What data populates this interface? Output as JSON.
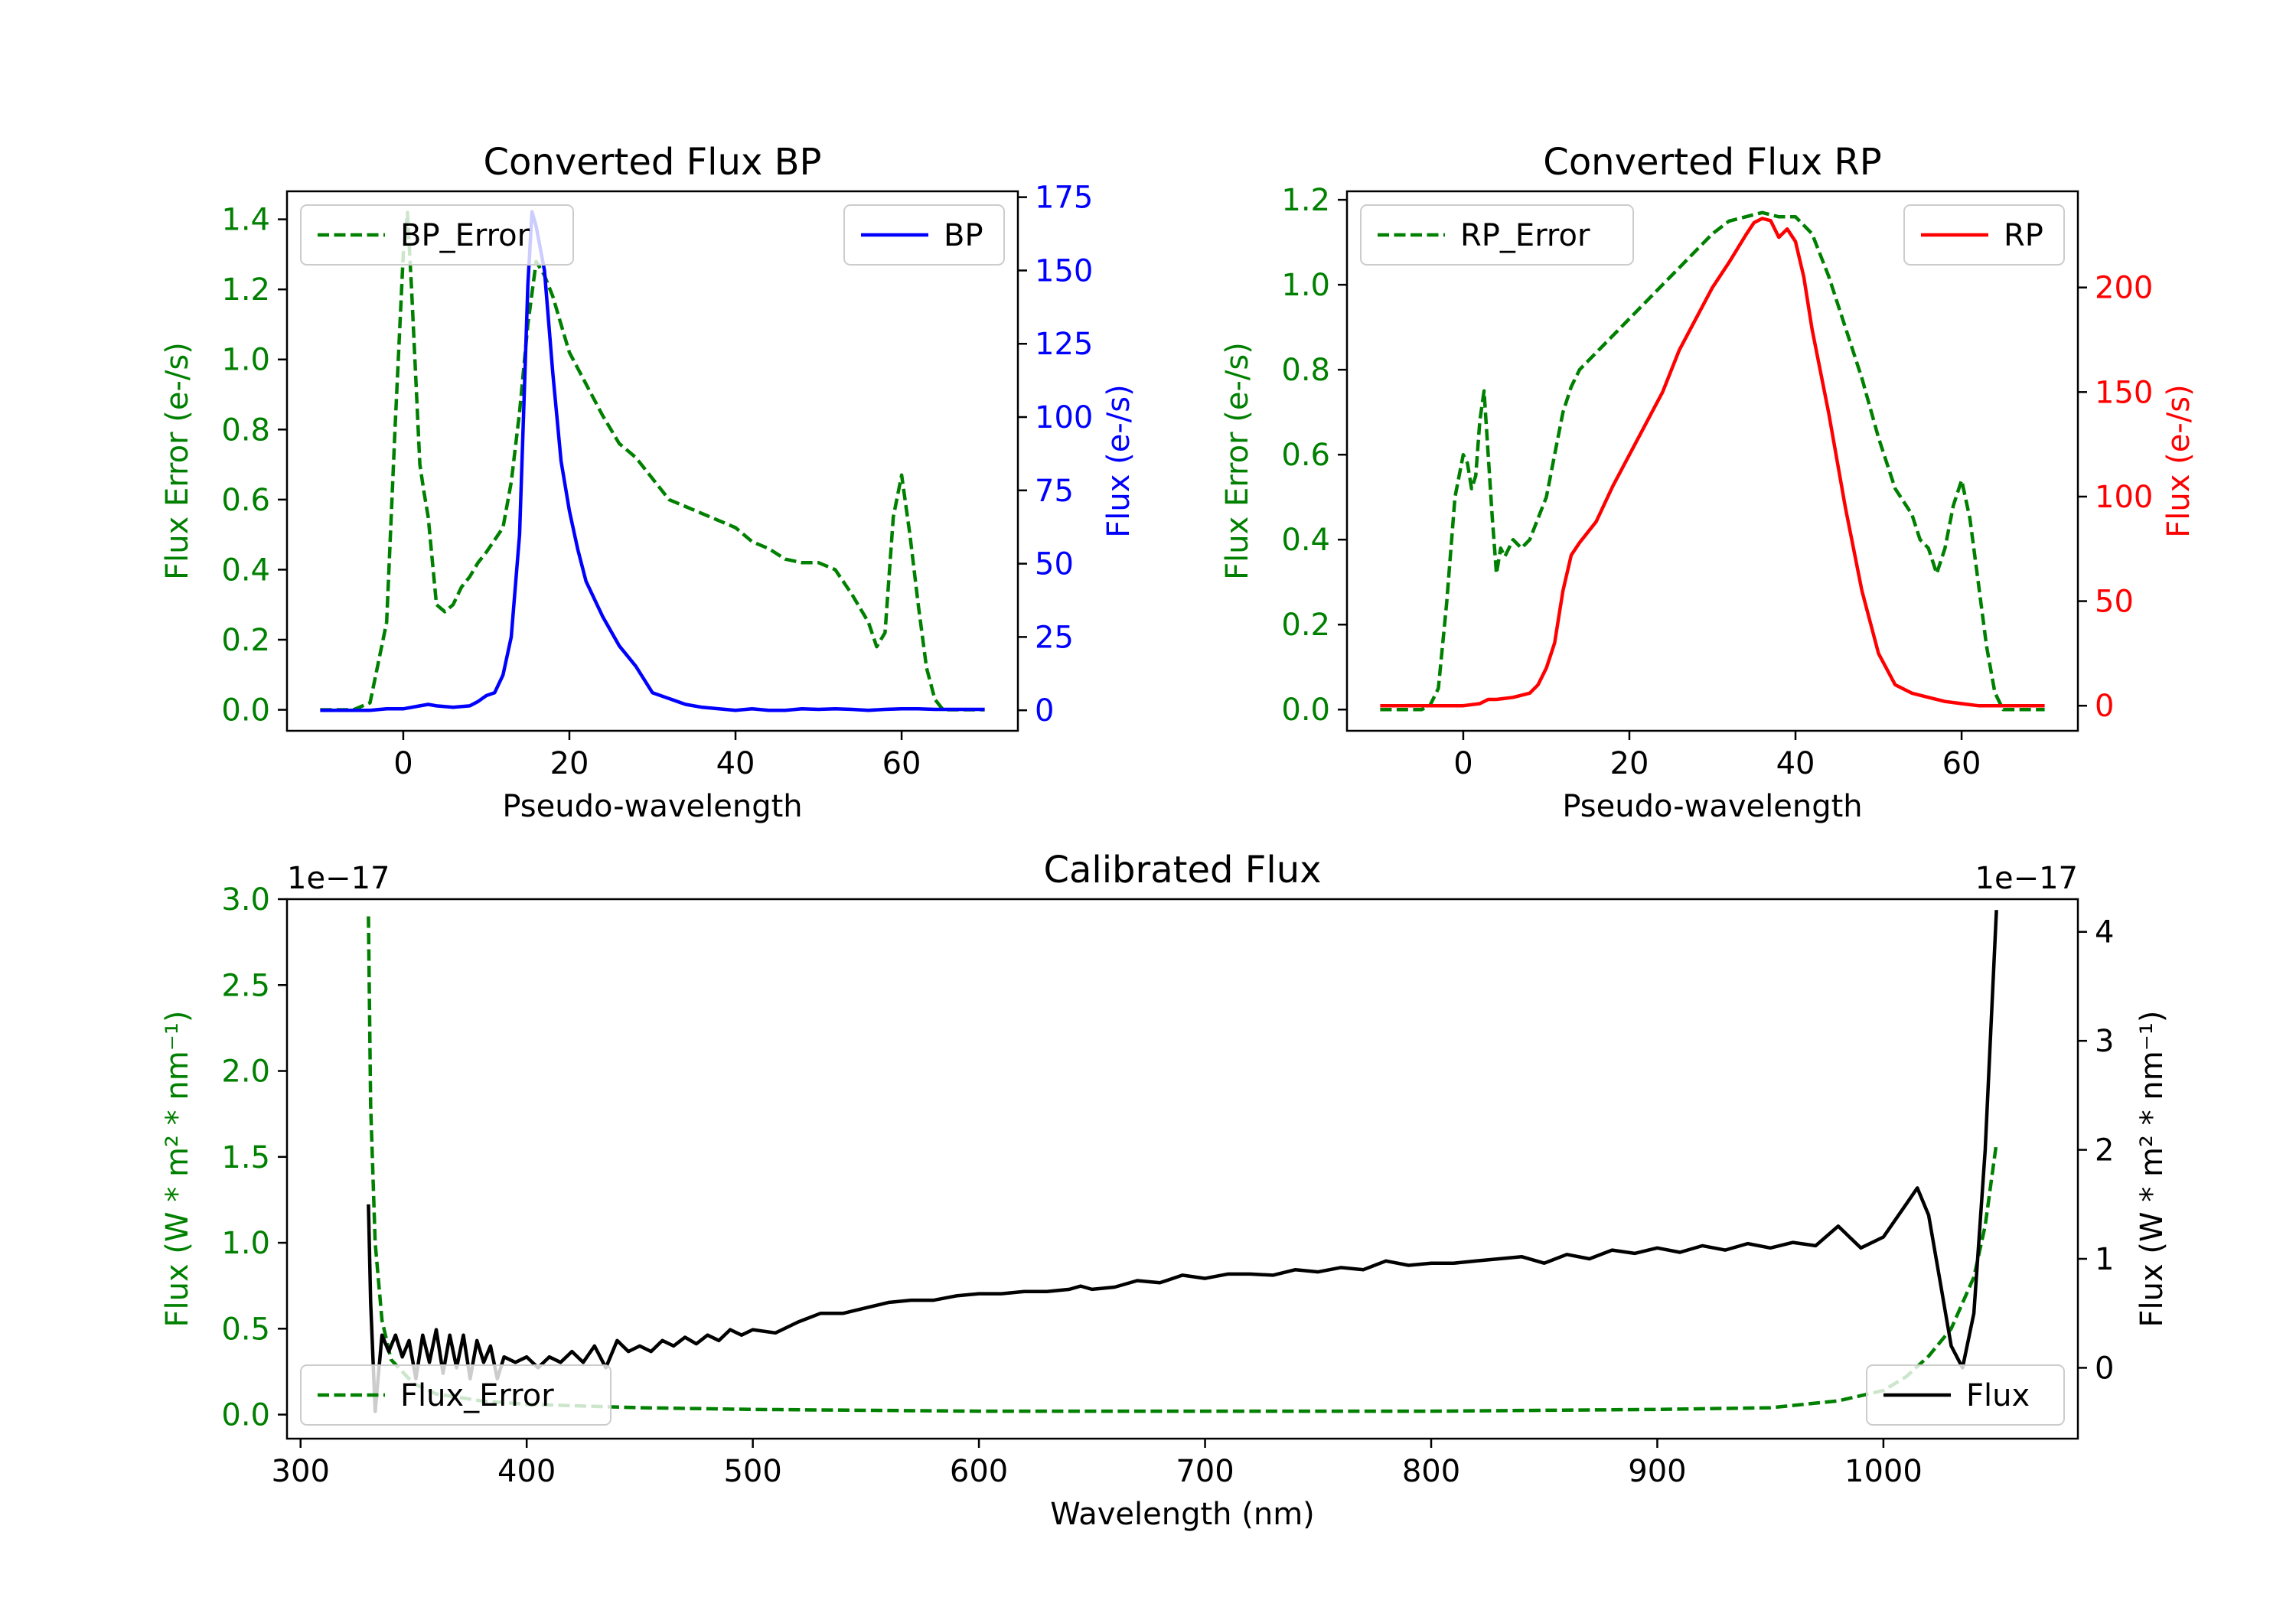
{
  "chart_data": [
    {
      "type": "line",
      "title": "Converted Flux BP",
      "xlabel": "Pseudo-wavelength",
      "ylabel_left": "Flux Error (e-/s)",
      "ylabel_right": "Flux (e-/s)",
      "xlim": [
        -14,
        74
      ],
      "ylim_left": [
        -0.06,
        1.48
      ],
      "ylim_right": [
        -7,
        177
      ],
      "xticks": [
        0,
        20,
        40,
        60
      ],
      "yticks_left": [
        0.0,
        0.2,
        0.4,
        0.6,
        0.8,
        1.0,
        1.2,
        1.4
      ],
      "yticks_right": [
        0,
        25,
        50,
        75,
        100,
        125,
        150,
        175
      ],
      "legend_left": "upper left",
      "legend_right": "upper right",
      "series": [
        {
          "name": "BP_Error",
          "axis": "left",
          "style": "dashed",
          "color": "#008000",
          "x": [
            -10,
            -6,
            -4,
            -2,
            -1,
            0,
            0.5,
            1,
            1.5,
            2,
            2.5,
            3,
            4,
            5,
            6,
            7,
            8,
            9,
            10,
            12,
            13,
            14,
            15,
            16,
            17,
            18,
            19,
            20,
            22,
            24,
            26,
            28,
            30,
            32,
            34,
            36,
            38,
            40,
            42,
            44,
            46,
            48,
            50,
            52,
            54,
            56,
            57,
            58,
            59,
            60,
            61,
            62,
            63,
            64,
            65,
            66,
            67,
            68,
            70
          ],
          "y": [
            0.0,
            0.0,
            0.02,
            0.25,
            0.8,
            1.3,
            1.42,
            1.2,
            0.95,
            0.7,
            0.62,
            0.55,
            0.3,
            0.28,
            0.3,
            0.35,
            0.38,
            0.42,
            0.45,
            0.52,
            0.65,
            0.85,
            1.1,
            1.28,
            1.24,
            1.18,
            1.1,
            1.02,
            0.93,
            0.84,
            0.76,
            0.72,
            0.66,
            0.6,
            0.58,
            0.56,
            0.54,
            0.52,
            0.48,
            0.46,
            0.43,
            0.42,
            0.42,
            0.4,
            0.33,
            0.25,
            0.18,
            0.22,
            0.55,
            0.67,
            0.5,
            0.3,
            0.12,
            0.03,
            0.0,
            0.0,
            0.0,
            0.0,
            0.0
          ]
        },
        {
          "name": "BP",
          "axis": "right",
          "style": "solid",
          "color": "#0000ff",
          "x": [
            -10,
            -6,
            -4,
            -2,
            0,
            2,
            3,
            4,
            6,
            8,
            9,
            10,
            11,
            12,
            13,
            14,
            15,
            15.5,
            16,
            17,
            18,
            19,
            20,
            21,
            22,
            24,
            26,
            28,
            30,
            32,
            34,
            36,
            38,
            40,
            42,
            44,
            46,
            48,
            50,
            52,
            54,
            56,
            58,
            60,
            62,
            64,
            66,
            68,
            70
          ],
          "y": [
            0,
            0,
            0,
            0.5,
            0.5,
            1.5,
            2,
            1.5,
            1,
            1.5,
            3,
            5,
            6,
            12,
            25,
            60,
            145,
            170,
            165,
            150,
            115,
            85,
            68,
            55,
            44,
            32,
            22,
            15,
            6,
            4,
            2,
            1,
            0.5,
            0,
            0.5,
            0,
            0,
            0.5,
            0.3,
            0.5,
            0.3,
            0,
            0.3,
            0.5,
            0.5,
            0.3,
            0.3,
            0.3,
            0.3
          ]
        }
      ]
    },
    {
      "type": "line",
      "title": "Converted Flux RP",
      "xlabel": "Pseudo-wavelength",
      "ylabel_left": "Flux Error (e-/s)",
      "ylabel_right": "Flux (e-/s)",
      "xlim": [
        -14,
        74
      ],
      "ylim_left": [
        -0.05,
        1.22
      ],
      "ylim_right": [
        -12,
        246
      ],
      "xticks": [
        0,
        20,
        40,
        60
      ],
      "yticks_left": [
        0.0,
        0.2,
        0.4,
        0.6,
        0.8,
        1.0,
        1.2
      ],
      "yticks_right": [
        0,
        50,
        100,
        150,
        200
      ],
      "legend_left": "upper left",
      "legend_right": "upper right",
      "series": [
        {
          "name": "RP_Error",
          "axis": "left",
          "style": "dashed",
          "color": "#008000",
          "x": [
            -10,
            -5,
            -4,
            -3,
            -2,
            -1,
            0,
            0.5,
            1,
            1.5,
            2,
            2.5,
            3,
            3.5,
            4,
            4.5,
            5,
            6,
            7,
            8,
            9,
            10,
            11,
            12,
            13,
            14,
            16,
            18,
            20,
            22,
            24,
            26,
            28,
            30,
            32,
            34,
            36,
            38,
            40,
            42,
            44,
            46,
            48,
            50,
            52,
            54,
            55,
            56,
            57,
            58,
            59,
            60,
            61,
            62,
            63,
            64,
            65,
            66,
            70
          ],
          "y": [
            0.0,
            0.0,
            0.01,
            0.05,
            0.25,
            0.5,
            0.6,
            0.58,
            0.52,
            0.55,
            0.68,
            0.75,
            0.6,
            0.45,
            0.32,
            0.38,
            0.36,
            0.4,
            0.38,
            0.4,
            0.45,
            0.5,
            0.6,
            0.7,
            0.76,
            0.8,
            0.84,
            0.88,
            0.92,
            0.96,
            1.0,
            1.04,
            1.08,
            1.12,
            1.15,
            1.16,
            1.17,
            1.16,
            1.16,
            1.12,
            1.02,
            0.9,
            0.78,
            0.64,
            0.52,
            0.46,
            0.4,
            0.38,
            0.32,
            0.38,
            0.48,
            0.54,
            0.45,
            0.3,
            0.15,
            0.04,
            0.0,
            0.0,
            0.0
          ]
        },
        {
          "name": "RP",
          "axis": "right",
          "style": "solid",
          "color": "#ff0000",
          "x": [
            -10,
            -5,
            0,
            2,
            3,
            4,
            6,
            8,
            9,
            10,
            11,
            12,
            13,
            14,
            16,
            18,
            20,
            22,
            24,
            26,
            28,
            30,
            32,
            34,
            35,
            36,
            37,
            38,
            39,
            40,
            41,
            42,
            44,
            46,
            48,
            50,
            52,
            54,
            56,
            58,
            60,
            62,
            64,
            66,
            70
          ],
          "y": [
            0,
            0,
            0,
            1,
            3,
            3,
            4,
            6,
            10,
            18,
            30,
            55,
            72,
            78,
            88,
            105,
            120,
            135,
            150,
            170,
            185,
            200,
            212,
            225,
            231,
            233,
            232,
            224,
            228,
            222,
            205,
            180,
            140,
            95,
            55,
            25,
            10,
            6,
            4,
            2,
            1,
            0,
            0,
            0,
            0
          ]
        }
      ]
    },
    {
      "type": "line",
      "title": "Calibrated Flux",
      "xlabel": "Wavelength (nm)",
      "ylabel_left": "Flux (W * m² * nm⁻¹)",
      "ylabel_right": "Flux (W * m² * nm⁻¹)",
      "offset_left": "1e−17",
      "offset_right": "1e−17",
      "xlim": [
        294,
        1086
      ],
      "ylim_left": [
        -0.14,
        3.0
      ],
      "ylim_right": [
        -0.65,
        4.3
      ],
      "xticks": [
        300,
        400,
        500,
        600,
        700,
        800,
        900,
        1000
      ],
      "yticks_left": [
        0.0,
        0.5,
        1.0,
        1.5,
        2.0,
        2.5,
        3.0
      ],
      "yticks_right": [
        0,
        1,
        2,
        3,
        4
      ],
      "legend_left": "lower left",
      "legend_right": "lower right",
      "series": [
        {
          "name": "Flux_Error",
          "axis": "left",
          "style": "dashed",
          "color": "#008000",
          "x": [
            330,
            331,
            333,
            336,
            340,
            345,
            350,
            360,
            380,
            400,
            450,
            500,
            600,
            700,
            800,
            900,
            950,
            980,
            1000,
            1010,
            1020,
            1030,
            1040,
            1045,
            1050
          ],
          "y": [
            2.9,
            1.8,
            1.0,
            0.55,
            0.32,
            0.25,
            0.18,
            0.12,
            0.08,
            0.06,
            0.04,
            0.03,
            0.02,
            0.02,
            0.02,
            0.03,
            0.04,
            0.08,
            0.14,
            0.22,
            0.34,
            0.5,
            0.8,
            1.1,
            1.58
          ]
        },
        {
          "name": "Flux",
          "axis": "right",
          "style": "solid",
          "color": "#000000",
          "x": [
            330,
            331,
            333,
            336,
            339,
            342,
            345,
            348,
            351,
            354,
            357,
            360,
            363,
            366,
            369,
            372,
            375,
            378,
            381,
            384,
            387,
            390,
            395,
            400,
            405,
            410,
            415,
            420,
            425,
            430,
            435,
            440,
            445,
            450,
            455,
            460,
            465,
            470,
            475,
            480,
            485,
            490,
            495,
            500,
            510,
            520,
            530,
            540,
            550,
            560,
            570,
            580,
            590,
            600,
            610,
            620,
            630,
            640,
            645,
            650,
            660,
            670,
            680,
            690,
            700,
            710,
            720,
            730,
            740,
            750,
            760,
            770,
            780,
            790,
            800,
            810,
            820,
            830,
            840,
            850,
            860,
            870,
            880,
            890,
            900,
            910,
            920,
            930,
            940,
            950,
            960,
            970,
            980,
            990,
            1000,
            1010,
            1015,
            1020,
            1025,
            1030,
            1035,
            1040,
            1045,
            1050
          ],
          "y": [
            1.5,
            0.6,
            -0.4,
            0.3,
            0.15,
            0.3,
            0.1,
            0.25,
            -0.1,
            0.3,
            0.05,
            0.35,
            -0.05,
            0.3,
            0.0,
            0.3,
            -0.1,
            0.25,
            0.05,
            0.2,
            -0.1,
            0.1,
            0.05,
            0.1,
            0.0,
            0.1,
            0.05,
            0.15,
            0.05,
            0.2,
            0.0,
            0.25,
            0.15,
            0.2,
            0.15,
            0.25,
            0.2,
            0.28,
            0.22,
            0.3,
            0.25,
            0.35,
            0.3,
            0.35,
            0.32,
            0.42,
            0.5,
            0.5,
            0.55,
            0.6,
            0.62,
            0.62,
            0.66,
            0.68,
            0.68,
            0.7,
            0.7,
            0.72,
            0.75,
            0.72,
            0.74,
            0.8,
            0.78,
            0.85,
            0.82,
            0.86,
            0.86,
            0.85,
            0.9,
            0.88,
            0.92,
            0.9,
            0.98,
            0.94,
            0.96,
            0.96,
            0.98,
            1.0,
            1.02,
            0.96,
            1.04,
            1.0,
            1.08,
            1.05,
            1.1,
            1.06,
            1.12,
            1.08,
            1.14,
            1.1,
            1.15,
            1.12,
            1.3,
            1.1,
            1.2,
            1.5,
            1.65,
            1.4,
            0.8,
            0.2,
            0.0,
            0.5,
            2.0,
            4.2
          ]
        }
      ]
    }
  ]
}
